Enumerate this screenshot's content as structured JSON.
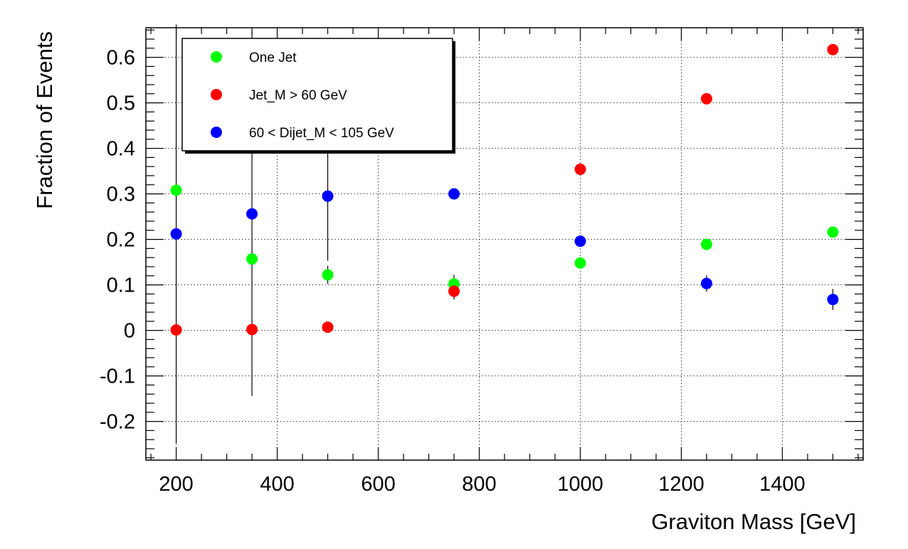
{
  "chart_data": {
    "type": "scatter",
    "title": "",
    "xlabel": "Graviton Mass [GeV]",
    "ylabel": "Fraction of Events",
    "xlim": [
      140,
      1560
    ],
    "ylim": [
      -0.285,
      0.665
    ],
    "x_ticks": [
      200,
      400,
      600,
      800,
      1000,
      1200,
      1400
    ],
    "y_ticks": [
      -0.2,
      -0.1,
      0,
      0.1,
      0.2,
      0.3,
      0.4,
      0.5,
      0.6
    ],
    "x_tick_labels": [
      "200",
      "400",
      "600",
      "800",
      "1000",
      "1200",
      "1400"
    ],
    "y_tick_labels": [
      "-0.2",
      "-0.1",
      "0",
      "0.1",
      "0.2",
      "0.3",
      "0.4",
      "0.5",
      "0.6"
    ],
    "grid": true,
    "legend_position": "top-left",
    "series": [
      {
        "name": "One Jet",
        "color": "#00ff00",
        "x": [
          200,
          350,
          500,
          750,
          1000,
          1250,
          1500
        ],
        "y": [
          0.308,
          0.157,
          0.122,
          0.102,
          0.148,
          0.189,
          0.216
        ],
        "err": [
          0.01,
          0.01,
          0.02,
          0.02,
          0.01,
          0.01,
          0.01
        ]
      },
      {
        "name": "Jet_M > 60 GeV",
        "color": "#ff0000",
        "x": [
          200,
          350,
          500,
          750,
          1000,
          1250,
          1500
        ],
        "y": [
          0.001,
          0.002,
          0.007,
          0.086,
          0.354,
          0.509,
          0.617
        ],
        "err": [
          0,
          0,
          0,
          0.018,
          0,
          0,
          0
        ]
      },
      {
        "name": "60 < Dijet_M < 105 GeV",
        "color": "#0000ff",
        "x": [
          200,
          350,
          500,
          750,
          1000,
          1250,
          1500
        ],
        "y": [
          0.212,
          0.256,
          0.295,
          0.3,
          0.196,
          0.103,
          0.068
        ],
        "err": [
          0.46,
          0.4,
          0.142,
          0,
          0.012,
          0.018,
          0.023
        ]
      }
    ]
  }
}
